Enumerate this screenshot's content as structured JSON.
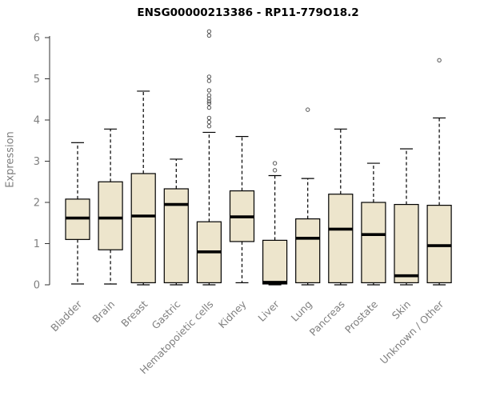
{
  "chart_data": {
    "type": "boxplot",
    "title": "ENSG00000213386 - RP11-779O18.2",
    "ylabel": "Expression",
    "ylim": [
      0,
      6
    ],
    "yticks": [
      0,
      1,
      2,
      3,
      4,
      5,
      6
    ],
    "grid": false,
    "legend": "none",
    "categories": [
      "Bladder",
      "Brain",
      "Breast",
      "Gastric",
      "Hematopoietic cells",
      "Kidney",
      "Liver",
      "Lung",
      "Pancreas",
      "Prostate",
      "Skin",
      "Unknown / Other"
    ],
    "boxes": [
      {
        "category": "Bladder",
        "whisker_low": 0.02,
        "q1": 1.1,
        "median": 1.62,
        "q3": 2.08,
        "whisker_high": 3.45,
        "outliers": []
      },
      {
        "category": "Brain",
        "whisker_low": 0.02,
        "q1": 0.85,
        "median": 1.62,
        "q3": 2.5,
        "whisker_high": 3.78,
        "outliers": []
      },
      {
        "category": "Breast",
        "whisker_low": 0.0,
        "q1": 0.05,
        "median": 1.67,
        "q3": 2.7,
        "whisker_high": 4.7,
        "outliers": []
      },
      {
        "category": "Gastric",
        "whisker_low": 0.0,
        "q1": 0.05,
        "median": 1.95,
        "q3": 2.33,
        "whisker_high": 3.05,
        "outliers": []
      },
      {
        "category": "Hematopoietic cells",
        "whisker_low": 0.0,
        "q1": 0.05,
        "median": 0.8,
        "q3": 1.53,
        "whisker_high": 3.7,
        "outliers": [
          3.85,
          3.95,
          4.05,
          4.3,
          4.4,
          4.45,
          4.52,
          4.6,
          4.72,
          4.95,
          5.05,
          6.05,
          6.15
        ]
      },
      {
        "category": "Kidney",
        "whisker_low": 0.05,
        "q1": 1.05,
        "median": 1.65,
        "q3": 2.28,
        "whisker_high": 3.6,
        "outliers": []
      },
      {
        "category": "Liver",
        "whisker_low": 0.0,
        "q1": 0.02,
        "median": 0.06,
        "q3": 1.08,
        "whisker_high": 2.65,
        "outliers": [
          2.78,
          2.95
        ]
      },
      {
        "category": "Lung",
        "whisker_low": 0.0,
        "q1": 0.05,
        "median": 1.13,
        "q3": 1.6,
        "whisker_high": 2.58,
        "outliers": [
          4.25
        ]
      },
      {
        "category": "Pancreas",
        "whisker_low": 0.0,
        "q1": 0.05,
        "median": 1.35,
        "q3": 2.2,
        "whisker_high": 3.78,
        "outliers": []
      },
      {
        "category": "Prostate",
        "whisker_low": 0.0,
        "q1": 0.05,
        "median": 1.22,
        "q3": 2.0,
        "whisker_high": 2.95,
        "outliers": []
      },
      {
        "category": "Skin",
        "whisker_low": 0.0,
        "q1": 0.05,
        "median": 0.22,
        "q3": 1.95,
        "whisker_high": 3.3,
        "outliers": []
      },
      {
        "category": "Unknown / Other",
        "whisker_low": 0.0,
        "q1": 0.05,
        "median": 0.95,
        "q3": 1.93,
        "whisker_high": 4.05,
        "outliers": [
          5.45
        ]
      }
    ],
    "colors": {
      "box_fill": "#EDE5CC",
      "box_border": "#000000",
      "median": "#000000",
      "whisker": "#000000",
      "outlier": "#555555",
      "axis_line": "#333333",
      "axis_text": "#7f7f7f",
      "title": "#000000",
      "background": "#ffffff"
    }
  }
}
